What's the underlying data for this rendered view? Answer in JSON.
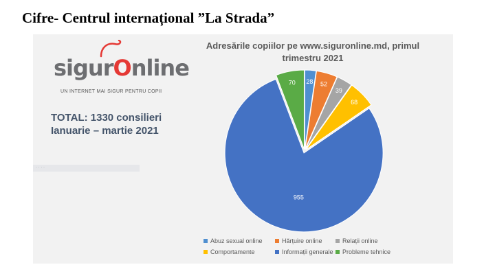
{
  "slide": {
    "title": "Cifre- Centrul internațional ”La Strada”"
  },
  "logo": {
    "word1": "sigur",
    "word2": "nline",
    "tagline": "UN INTERNET MAI SIGUR PENTRU COPII",
    "colors": {
      "gray": "#6d6e71",
      "red": "#e53935"
    },
    "icon": "computer-mouse-icon"
  },
  "total": {
    "line1": "TOTAL: 1330 consilieri",
    "line2": "Ianuarie – martie 2021"
  },
  "chart_data": {
    "type": "pie",
    "title": "Adresările copiilor pe www.siguronline.md, primul trimestru 2021",
    "title_lines": [
      "Adresările copiilor pe www.siguronline.md, primul",
      "trimestru 2021"
    ],
    "categories": [
      "Abuz sexual online",
      "Hărțuire online",
      "Relații online",
      "Comportamente",
      "Informații generale",
      "Probleme tehnice"
    ],
    "values": [
      28,
      52,
      39,
      68,
      955,
      70
    ],
    "colors": [
      "#4f8fd0",
      "#ed7d31",
      "#a5a5a5",
      "#ffc000",
      "#4472c4",
      "#5aab46"
    ],
    "legend_position": "bottom",
    "start_angle_deg": 0,
    "exploded": true
  }
}
